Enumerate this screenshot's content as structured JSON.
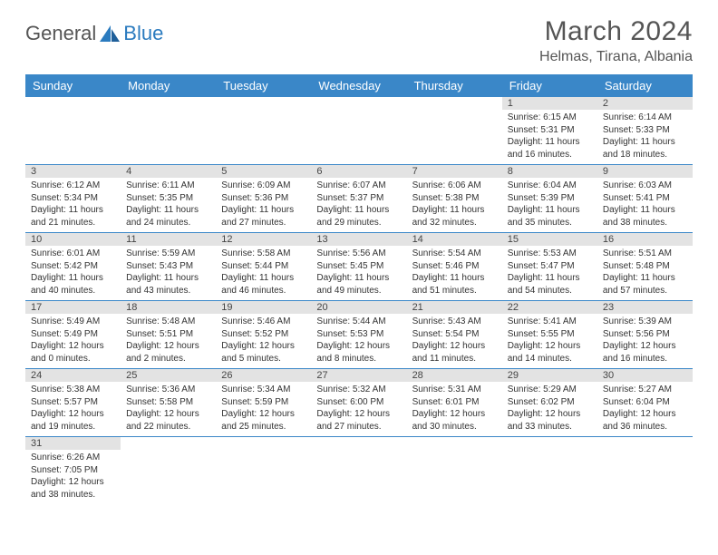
{
  "logo": {
    "general": "General",
    "blue": "Blue"
  },
  "header": {
    "month_title": "March 2024",
    "location": "Helmas, Tirana, Albania"
  },
  "colors": {
    "brand_blue": "#3a87c8",
    "header_row": "#3a87c8",
    "daynum_bg": "#e3e3e3",
    "divider": "#3a87c8"
  },
  "weekdays": [
    "Sunday",
    "Monday",
    "Tuesday",
    "Wednesday",
    "Thursday",
    "Friday",
    "Saturday"
  ],
  "weeks": [
    [
      null,
      null,
      null,
      null,
      null,
      {
        "n": "1",
        "sunrise": "Sunrise: 6:15 AM",
        "sunset": "Sunset: 5:31 PM",
        "day": "Daylight: 11 hours and 16 minutes."
      },
      {
        "n": "2",
        "sunrise": "Sunrise: 6:14 AM",
        "sunset": "Sunset: 5:33 PM",
        "day": "Daylight: 11 hours and 18 minutes."
      }
    ],
    [
      {
        "n": "3",
        "sunrise": "Sunrise: 6:12 AM",
        "sunset": "Sunset: 5:34 PM",
        "day": "Daylight: 11 hours and 21 minutes."
      },
      {
        "n": "4",
        "sunrise": "Sunrise: 6:11 AM",
        "sunset": "Sunset: 5:35 PM",
        "day": "Daylight: 11 hours and 24 minutes."
      },
      {
        "n": "5",
        "sunrise": "Sunrise: 6:09 AM",
        "sunset": "Sunset: 5:36 PM",
        "day": "Daylight: 11 hours and 27 minutes."
      },
      {
        "n": "6",
        "sunrise": "Sunrise: 6:07 AM",
        "sunset": "Sunset: 5:37 PM",
        "day": "Daylight: 11 hours and 29 minutes."
      },
      {
        "n": "7",
        "sunrise": "Sunrise: 6:06 AM",
        "sunset": "Sunset: 5:38 PM",
        "day": "Daylight: 11 hours and 32 minutes."
      },
      {
        "n": "8",
        "sunrise": "Sunrise: 6:04 AM",
        "sunset": "Sunset: 5:39 PM",
        "day": "Daylight: 11 hours and 35 minutes."
      },
      {
        "n": "9",
        "sunrise": "Sunrise: 6:03 AM",
        "sunset": "Sunset: 5:41 PM",
        "day": "Daylight: 11 hours and 38 minutes."
      }
    ],
    [
      {
        "n": "10",
        "sunrise": "Sunrise: 6:01 AM",
        "sunset": "Sunset: 5:42 PM",
        "day": "Daylight: 11 hours and 40 minutes."
      },
      {
        "n": "11",
        "sunrise": "Sunrise: 5:59 AM",
        "sunset": "Sunset: 5:43 PM",
        "day": "Daylight: 11 hours and 43 minutes."
      },
      {
        "n": "12",
        "sunrise": "Sunrise: 5:58 AM",
        "sunset": "Sunset: 5:44 PM",
        "day": "Daylight: 11 hours and 46 minutes."
      },
      {
        "n": "13",
        "sunrise": "Sunrise: 5:56 AM",
        "sunset": "Sunset: 5:45 PM",
        "day": "Daylight: 11 hours and 49 minutes."
      },
      {
        "n": "14",
        "sunrise": "Sunrise: 5:54 AM",
        "sunset": "Sunset: 5:46 PM",
        "day": "Daylight: 11 hours and 51 minutes."
      },
      {
        "n": "15",
        "sunrise": "Sunrise: 5:53 AM",
        "sunset": "Sunset: 5:47 PM",
        "day": "Daylight: 11 hours and 54 minutes."
      },
      {
        "n": "16",
        "sunrise": "Sunrise: 5:51 AM",
        "sunset": "Sunset: 5:48 PM",
        "day": "Daylight: 11 hours and 57 minutes."
      }
    ],
    [
      {
        "n": "17",
        "sunrise": "Sunrise: 5:49 AM",
        "sunset": "Sunset: 5:49 PM",
        "day": "Daylight: 12 hours and 0 minutes."
      },
      {
        "n": "18",
        "sunrise": "Sunrise: 5:48 AM",
        "sunset": "Sunset: 5:51 PM",
        "day": "Daylight: 12 hours and 2 minutes."
      },
      {
        "n": "19",
        "sunrise": "Sunrise: 5:46 AM",
        "sunset": "Sunset: 5:52 PM",
        "day": "Daylight: 12 hours and 5 minutes."
      },
      {
        "n": "20",
        "sunrise": "Sunrise: 5:44 AM",
        "sunset": "Sunset: 5:53 PM",
        "day": "Daylight: 12 hours and 8 minutes."
      },
      {
        "n": "21",
        "sunrise": "Sunrise: 5:43 AM",
        "sunset": "Sunset: 5:54 PM",
        "day": "Daylight: 12 hours and 11 minutes."
      },
      {
        "n": "22",
        "sunrise": "Sunrise: 5:41 AM",
        "sunset": "Sunset: 5:55 PM",
        "day": "Daylight: 12 hours and 14 minutes."
      },
      {
        "n": "23",
        "sunrise": "Sunrise: 5:39 AM",
        "sunset": "Sunset: 5:56 PM",
        "day": "Daylight: 12 hours and 16 minutes."
      }
    ],
    [
      {
        "n": "24",
        "sunrise": "Sunrise: 5:38 AM",
        "sunset": "Sunset: 5:57 PM",
        "day": "Daylight: 12 hours and 19 minutes."
      },
      {
        "n": "25",
        "sunrise": "Sunrise: 5:36 AM",
        "sunset": "Sunset: 5:58 PM",
        "day": "Daylight: 12 hours and 22 minutes."
      },
      {
        "n": "26",
        "sunrise": "Sunrise: 5:34 AM",
        "sunset": "Sunset: 5:59 PM",
        "day": "Daylight: 12 hours and 25 minutes."
      },
      {
        "n": "27",
        "sunrise": "Sunrise: 5:32 AM",
        "sunset": "Sunset: 6:00 PM",
        "day": "Daylight: 12 hours and 27 minutes."
      },
      {
        "n": "28",
        "sunrise": "Sunrise: 5:31 AM",
        "sunset": "Sunset: 6:01 PM",
        "day": "Daylight: 12 hours and 30 minutes."
      },
      {
        "n": "29",
        "sunrise": "Sunrise: 5:29 AM",
        "sunset": "Sunset: 6:02 PM",
        "day": "Daylight: 12 hours and 33 minutes."
      },
      {
        "n": "30",
        "sunrise": "Sunrise: 5:27 AM",
        "sunset": "Sunset: 6:04 PM",
        "day": "Daylight: 12 hours and 36 minutes."
      }
    ],
    [
      {
        "n": "31",
        "sunrise": "Sunrise: 6:26 AM",
        "sunset": "Sunset: 7:05 PM",
        "day": "Daylight: 12 hours and 38 minutes."
      },
      null,
      null,
      null,
      null,
      null,
      null
    ]
  ]
}
